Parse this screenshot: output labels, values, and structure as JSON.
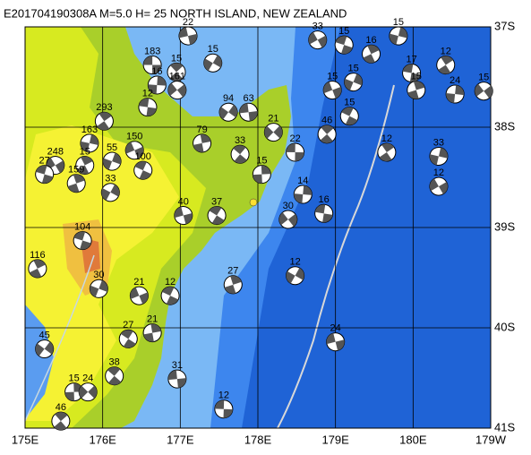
{
  "chart_data": {
    "type": "map",
    "title": "E201704190308A  M=5.0 H= 25 NORTH ISLAND, NEW ZEALAND",
    "xlim": [
      175,
      181
    ],
    "ylim": [
      -41,
      -37
    ],
    "xticks": [
      {
        "value": 175,
        "label": "175E"
      },
      {
        "value": 176,
        "label": "176E"
      },
      {
        "value": 177,
        "label": "177E"
      },
      {
        "value": 178,
        "label": "178E"
      },
      {
        "value": 179,
        "label": "179E"
      },
      {
        "value": 180,
        "label": "180E"
      },
      {
        "value": 181,
        "label": "179W"
      }
    ],
    "yticks": [
      {
        "value": -37,
        "label": "37S"
      },
      {
        "value": -38,
        "label": "38S"
      },
      {
        "value": -39,
        "label": "39S"
      },
      {
        "value": -40,
        "label": "40S"
      },
      {
        "value": -41,
        "label": "41S"
      }
    ],
    "grid": true,
    "color": "#555555",
    "x": [
      176.64,
      176.95,
      176.7,
      176.96,
      176.58,
      176.02,
      175.83,
      175.39,
      175.25,
      175.77,
      176.12,
      176.41,
      176.52,
      175.66,
      176.1,
      177.04,
      177.47,
      177.28,
      177.62,
      177.88,
      177.77,
      178.05,
      178.2,
      178.48,
      178.89,
      178.58,
      178.39,
      178.85,
      179.66,
      180.33,
      180.33,
      175.74,
      175.16,
      175.95,
      176.47,
      176.87,
      177.68,
      178.48,
      179.0,
      176.33,
      176.64,
      175.25,
      176.96,
      176.15,
      175.63,
      175.81,
      177.56,
      175.46,
      180.54,
      180.91,
      179.98,
      180.42,
      179.81,
      178.77,
      179.11,
      179.46,
      179.23,
      178.96,
      179.18,
      180.04,
      177.42,
      177.1
    ],
    "values": [
      -37.38,
      -37.45,
      -37.58,
      -37.63,
      -37.8,
      -37.94,
      -38.16,
      -38.38,
      -38.47,
      -38.38,
      -38.34,
      -38.23,
      -38.43,
      -38.56,
      -38.65,
      -38.88,
      -38.88,
      -38.16,
      -37.85,
      -37.85,
      -38.27,
      -38.47,
      -38.05,
      -38.25,
      -38.07,
      -38.67,
      -38.92,
      -38.86,
      -38.25,
      -38.29,
      -38.59,
      -39.13,
      -39.41,
      -39.61,
      -39.68,
      -39.68,
      -39.57,
      -39.48,
      -40.14,
      -40.11,
      -40.05,
      -40.21,
      -40.51,
      -40.48,
      -40.64,
      -40.64,
      -40.81,
      -40.93,
      -37.67,
      -37.64,
      -37.46,
      -37.38,
      -37.09,
      -37.13,
      -37.18,
      -37.27,
      -37.55,
      -37.63,
      -37.89,
      -37.63,
      -37.36,
      -37.09
    ],
    "depths": [
      183,
      15,
      16,
      161,
      12,
      293,
      163,
      248,
      27,
      15,
      55,
      150,
      100,
      159,
      33,
      40,
      37,
      79,
      94,
      63,
      33,
      15,
      21,
      22,
      46,
      14,
      30,
      16,
      12,
      33,
      12,
      104,
      116,
      30,
      21,
      12,
      27,
      12,
      24,
      27,
      21,
      45,
      31,
      38,
      15,
      24,
      12,
      46,
      24,
      15,
      17,
      12,
      15,
      33,
      15,
      16,
      15,
      15,
      15,
      15,
      15,
      22
    ]
  }
}
